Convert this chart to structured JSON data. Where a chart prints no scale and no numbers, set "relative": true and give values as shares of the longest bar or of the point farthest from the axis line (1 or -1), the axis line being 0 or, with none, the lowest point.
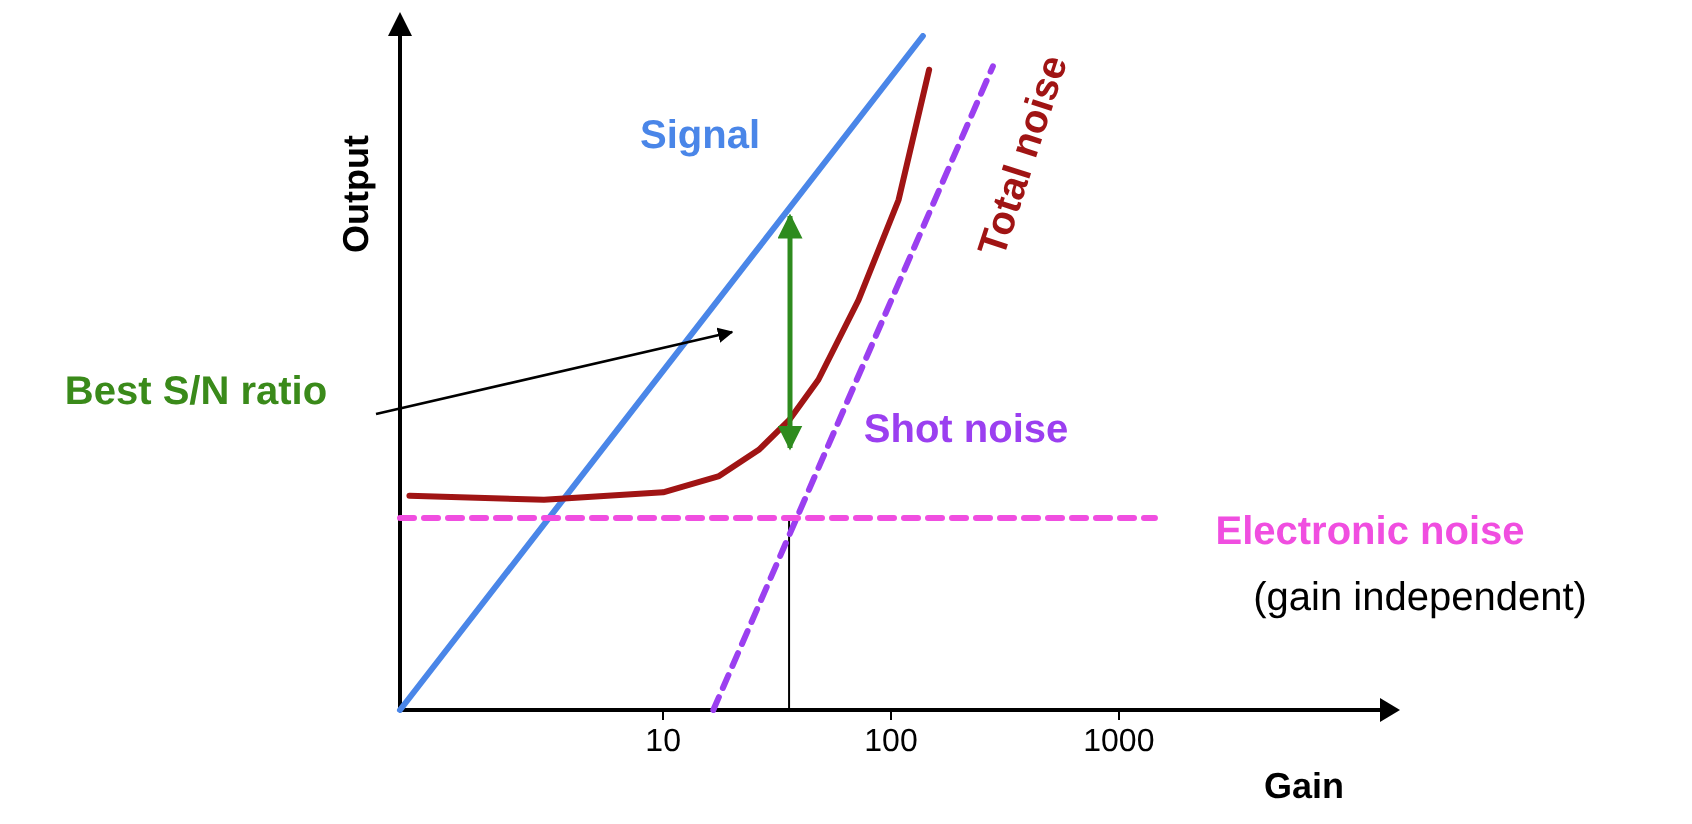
{
  "chart_data": {
    "type": "line",
    "relative": true,
    "log": "x",
    "marker": "none",
    "xlabel": "Gain",
    "ylabel": "Output",
    "xlim": [
      0.7,
      14000
    ],
    "xticks": [
      10,
      100,
      1000
    ],
    "annotations": [
      "Best S/N ratio",
      "(gain independent)"
    ],
    "series": [
      {
        "name": "Signal",
        "color": "#4a86e8",
        "x": [
          0.7,
          138
        ],
        "values": [
          0,
          1
        ]
      },
      {
        "name": "Total noise",
        "color": "#a01414",
        "x": [
          0.77,
          3,
          10,
          17.6,
          26.3,
          35.7,
          48,
          72,
          108,
          147
        ],
        "values": [
          0.318,
          0.312,
          0.323,
          0.347,
          0.386,
          0.43,
          0.49,
          0.608,
          0.757,
          0.95
        ]
      },
      {
        "name": "Shot noise",
        "color": "#9b3ff0",
        "line_style": "dashed",
        "x": [
          16.6,
          280
        ],
        "values": [
          0,
          0.955
        ]
      },
      {
        "name": "Electronic noise",
        "color": "#f04ee0",
        "line_style": "dashed",
        "x": [
          0.7,
          1440
        ],
        "values": [
          0.285,
          0.285
        ]
      },
      {
        "color": "#000000",
        "x": [
          35.7,
          35.7
        ],
        "values": [
          0,
          0.285
        ]
      }
    ]
  }
}
